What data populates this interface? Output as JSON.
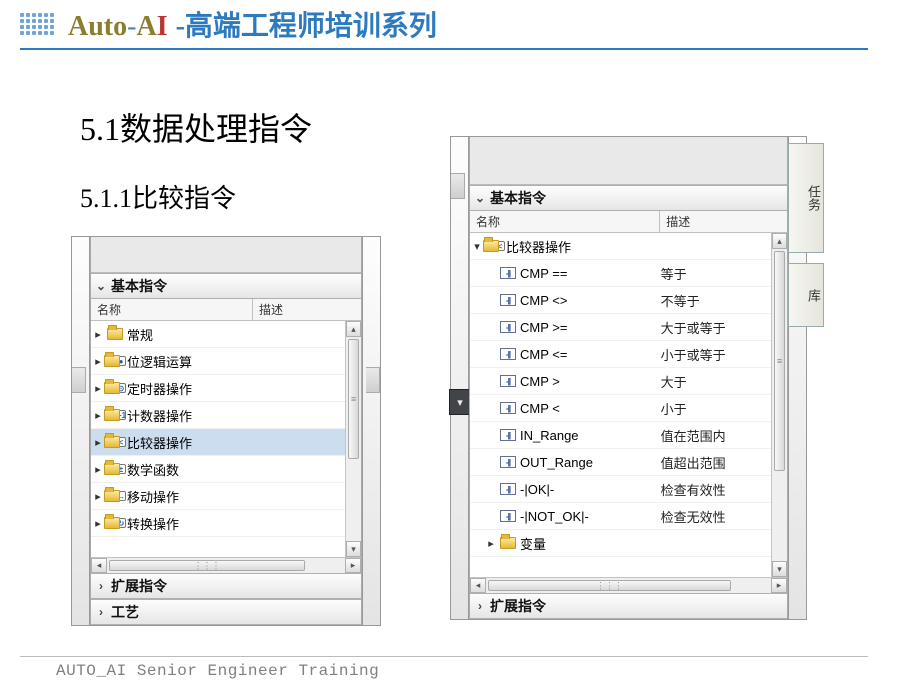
{
  "header": {
    "brand_auto": "Auto",
    "brand_dash": "-",
    "brand_ai_a": "A",
    "brand_ai_i": "I",
    "subtitle": "-高端工程师培训系列"
  },
  "sections": {
    "h1": "5.1数据处理指令",
    "h2": "5.1.1比较指令"
  },
  "columns": {
    "name": "名称",
    "desc": "描述"
  },
  "left_panel": {
    "header": "基本指令",
    "groups": [
      {
        "label": "常规",
        "icon": "folder",
        "badge": ""
      },
      {
        "label": "位逻辑运算",
        "icon": "folder",
        "badge": "●"
      },
      {
        "label": "定时器操作",
        "icon": "folder",
        "badge": "⊙"
      },
      {
        "label": "计数器操作",
        "icon": "folder",
        "badge": "+1"
      },
      {
        "label": "比较器操作",
        "icon": "folder",
        "badge": "<",
        "selected": true
      },
      {
        "label": "数学函数",
        "icon": "folder",
        "badge": "±"
      },
      {
        "label": "移动操作",
        "icon": "folder",
        "badge": "→"
      },
      {
        "label": "转换操作",
        "icon": "folder",
        "badge": "↻"
      }
    ],
    "footer_groups": [
      {
        "label": "扩展指令"
      },
      {
        "label": "工艺"
      }
    ]
  },
  "right_panel": {
    "header": "基本指令",
    "group": "比较器操作",
    "items": [
      {
        "name": "CMP ==",
        "desc": "等于"
      },
      {
        "name": "CMP <>",
        "desc": "不等于"
      },
      {
        "name": "CMP >=",
        "desc": "大于或等于"
      },
      {
        "name": "CMP <=",
        "desc": "小于或等于"
      },
      {
        "name": "CMP >",
        "desc": "大于"
      },
      {
        "name": "CMP <",
        "desc": "小于"
      },
      {
        "name": "IN_Range",
        "desc": "值在范围内"
      },
      {
        "name": "OUT_Range",
        "desc": "值超出范围"
      },
      {
        "name": "-|OK|-",
        "desc": "检查有效性"
      },
      {
        "name": "-|NOT_OK|-",
        "desc": "检查无效性"
      }
    ],
    "subgroup": "变量",
    "footer_groups": [
      {
        "label": "扩展指令"
      }
    ],
    "tabs": {
      "t1": "任务",
      "t2": "库"
    }
  },
  "footer": "AUTO_AI Senior Engineer Training"
}
